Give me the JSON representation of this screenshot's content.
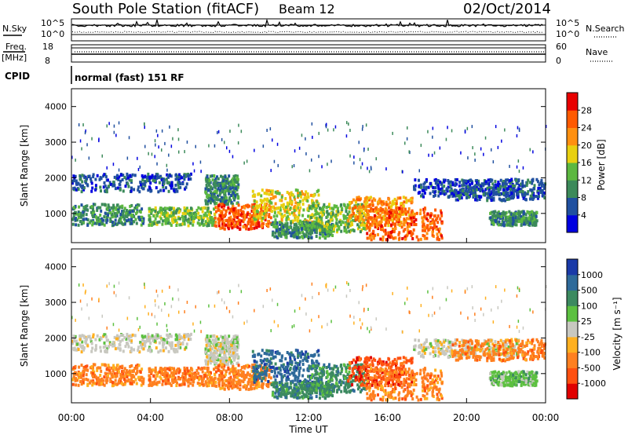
{
  "header": {
    "title": "South Pole Station (fitACF)",
    "beam": "Beam 12",
    "date": "02/Oct/2014"
  },
  "top_panels": {
    "nsky_label": "N.Sky",
    "nsearch_label": "N.Search",
    "nsky_ticks": [
      "10^5",
      "10^0"
    ],
    "nsearch_ticks": [
      "10^5",
      "10^0"
    ],
    "freq_label_1": "Freq.",
    "freq_label_2": "[MHz]",
    "freq_ticks": [
      "18",
      "8"
    ],
    "nave_label": "Nave",
    "nave_ticks": [
      "60",
      "0"
    ],
    "cpid_label": "CPID",
    "cpid_text": "normal (fast) 151 RF"
  },
  "chart_data": [
    {
      "type": "heatmap",
      "name": "power",
      "ylabel": "Slant Range [km]",
      "xlabel": "",
      "y_ticks": [
        1000,
        2000,
        3000,
        4000
      ],
      "ylim": [
        180,
        4500
      ],
      "colorbar_label": "Power [dB]",
      "colorbar_ticks": [
        "4",
        "8",
        "12",
        "16",
        "20",
        "24",
        "28"
      ],
      "colorbar_colors": [
        "#0000e0",
        "#2050a0",
        "#3c8a5a",
        "#5cb840",
        "#e8d010",
        "#ff9010",
        "#ff5a00",
        "#e80000"
      ]
    },
    {
      "type": "heatmap",
      "name": "velocity",
      "ylabel": "Slant Range [km]",
      "xlabel": "Time UT",
      "x_ticks": [
        "00:00",
        "04:00",
        "08:00",
        "12:00",
        "16:00",
        "20:00",
        "00:00"
      ],
      "y_ticks": [
        1000,
        2000,
        3000,
        4000
      ],
      "ylim": [
        180,
        4500
      ],
      "colorbar_label": "Velocity [m s⁻¹]",
      "colorbar_ticks": [
        "1000",
        "500",
        "100",
        "25",
        "-25",
        "-100",
        "-500",
        "-1000"
      ],
      "colorbar_colors": [
        "#1a3aa8",
        "#2e6a9a",
        "#3c8a60",
        "#5cc040",
        "#c8c8c0",
        "#ffb020",
        "#ff8020",
        "#ff5010",
        "#e00000"
      ]
    }
  ]
}
